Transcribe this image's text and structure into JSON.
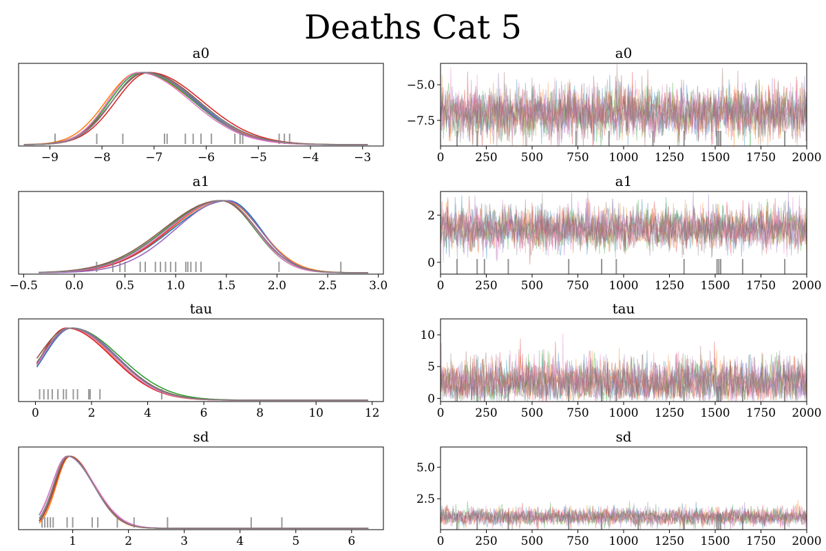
{
  "title": "Deaths Cat 5",
  "colors": [
    "#1f77b4",
    "#ff7f0e",
    "#2ca02c",
    "#d62728",
    "#9467bd",
    "#8c564b",
    "#e377c2",
    "#7f7f7f"
  ],
  "chart_data": [
    {
      "type": "line",
      "subtype": "density",
      "title": "a0",
      "xlim": [
        -9.6,
        -2.6
      ],
      "xticks": [
        -9,
        -8,
        -7,
        -6,
        -5,
        -4,
        -3
      ],
      "yticks_visible": false,
      "range": [
        -9.5,
        -2.9
      ],
      "series": [
        {
          "mode": -7.2,
          "sdl": 0.6,
          "sdr": 1.0
        },
        {
          "mode": -7.3,
          "sdl": 0.62,
          "sdr": 1.05
        },
        {
          "mode": -7.25,
          "sdl": 0.6,
          "sdr": 1.0
        },
        {
          "mode": -7.1,
          "sdl": 0.63,
          "sdr": 1.02
        },
        {
          "mode": -7.2,
          "sdl": 0.6,
          "sdr": 0.98
        },
        {
          "mode": -7.15,
          "sdl": 0.65,
          "sdr": 1.0
        },
        {
          "mode": -7.3,
          "sdl": 0.58,
          "sdr": 1.0
        },
        {
          "mode": -7.2,
          "sdl": 0.6,
          "sdr": 1.03
        }
      ],
      "rug": [
        -8.9,
        -8.1,
        -7.6,
        -6.8,
        -6.75,
        -6.4,
        -6.25,
        -6.1,
        -5.9,
        -5.45,
        -5.35,
        -5.3,
        -4.6,
        -4.5,
        -4.4
      ]
    },
    {
      "type": "line",
      "subtype": "trace",
      "title": "a0",
      "xlim": [
        0,
        2000
      ],
      "xticks": [
        0,
        250,
        500,
        750,
        1000,
        1250,
        1500,
        1750,
        2000
      ],
      "ylim": [
        -9.3,
        -3.5
      ],
      "yticks": [
        -7.5,
        -5.0
      ],
      "ytick_labels": [
        "−7.5",
        "−5.0"
      ],
      "center": -7.0,
      "spread": 0.9,
      "rug": [
        90,
        200,
        740,
        920,
        1160,
        1330,
        1510,
        1520,
        1530,
        1880
      ]
    },
    {
      "type": "line",
      "subtype": "density",
      "title": "a1",
      "xlim": [
        -0.55,
        3.05
      ],
      "xticks": [
        -0.5,
        0.0,
        0.5,
        1.0,
        1.5,
        2.0,
        2.5,
        3.0
      ],
      "yticks_visible": false,
      "range": [
        -0.35,
        2.9
      ],
      "series": [
        {
          "mode": 1.52,
          "sdl": 0.55,
          "sdr": 0.32
        },
        {
          "mode": 1.48,
          "sdl": 0.53,
          "sdr": 0.35
        },
        {
          "mode": 1.45,
          "sdl": 0.55,
          "sdr": 0.33
        },
        {
          "mode": 1.46,
          "sdl": 0.52,
          "sdr": 0.34
        },
        {
          "mode": 1.5,
          "sdl": 0.5,
          "sdr": 0.33
        },
        {
          "mode": 1.44,
          "sdl": 0.56,
          "sdr": 0.35
        },
        {
          "mode": 1.47,
          "sdl": 0.54,
          "sdr": 0.32
        },
        {
          "mode": 1.46,
          "sdl": 0.55,
          "sdr": 0.34
        }
      ],
      "rug": [
        0.22,
        0.38,
        0.45,
        0.5,
        0.65,
        0.7,
        0.8,
        0.85,
        0.9,
        0.95,
        1.0,
        1.1,
        1.12,
        1.15,
        1.2,
        1.25,
        2.02,
        2.63
      ]
    },
    {
      "type": "line",
      "subtype": "trace",
      "title": "a1",
      "xlim": [
        0,
        2000
      ],
      "xticks": [
        0,
        250,
        500,
        750,
        1000,
        1250,
        1500,
        1750,
        2000
      ],
      "ylim": [
        -0.5,
        3.0
      ],
      "yticks": [
        0,
        2
      ],
      "ytick_labels": [
        "0",
        "2"
      ],
      "center": 1.4,
      "spread": 0.45,
      "rug": [
        90,
        200,
        240,
        370,
        700,
        880,
        960,
        1330,
        1510,
        1520,
        1530,
        1650,
        1880
      ]
    },
    {
      "type": "line",
      "subtype": "density",
      "title": "tau",
      "xlim": [
        -0.6,
        12.4
      ],
      "xticks": [
        0,
        2,
        4,
        6,
        8,
        10,
        12
      ],
      "yticks_visible": false,
      "range": [
        0.05,
        11.85
      ],
      "series": [
        {
          "mode": 1.3,
          "sdl": 1.0,
          "sdr": 1.6
        },
        {
          "mode": 1.2,
          "sdl": 0.95,
          "sdr": 1.55
        },
        {
          "mode": 1.3,
          "sdl": 1.1,
          "sdr": 1.7
        },
        {
          "mode": 1.1,
          "sdl": 0.9,
          "sdr": 1.6
        },
        {
          "mode": 1.3,
          "sdl": 1.05,
          "sdr": 1.6
        },
        {
          "mode": 1.2,
          "sdl": 1.1,
          "sdr": 1.65
        },
        {
          "mode": 1.2,
          "sdl": 0.95,
          "sdr": 1.58
        },
        {
          "mode": 1.25,
          "sdl": 1.05,
          "sdr": 1.6
        }
      ],
      "rug": [
        0.15,
        0.3,
        0.45,
        0.6,
        0.8,
        1.0,
        1.1,
        1.35,
        1.5,
        1.9,
        1.95,
        2.3,
        4.5
      ]
    },
    {
      "type": "line",
      "subtype": "trace",
      "title": "tau",
      "xlim": [
        0,
        2000
      ],
      "xticks": [
        0,
        250,
        500,
        750,
        1000,
        1250,
        1500,
        1750,
        2000
      ],
      "ylim": [
        -0.5,
        12.5
      ],
      "yticks": [
        0,
        5,
        10
      ],
      "ytick_labels": [
        "0",
        "5",
        "10"
      ],
      "center": 2.5,
      "spread": 1.8,
      "rug": [
        90,
        200,
        240,
        370,
        700,
        880,
        960,
        1330,
        1510,
        1520,
        1530,
        1650,
        1880
      ]
    },
    {
      "type": "line",
      "subtype": "density",
      "title": "sd",
      "xlim": [
        0.03,
        6.57
      ],
      "xticks": [
        1,
        2,
        3,
        4,
        5,
        6
      ],
      "yticks_visible": false,
      "range": [
        0.4,
        6.3
      ],
      "series": [
        {
          "mode": 0.93,
          "sdl": 0.25,
          "sdr": 0.45
        },
        {
          "mode": 0.95,
          "sdl": 0.24,
          "sdr": 0.43
        },
        {
          "mode": 0.92,
          "sdl": 0.26,
          "sdr": 0.46
        },
        {
          "mode": 0.94,
          "sdl": 0.25,
          "sdr": 0.44
        },
        {
          "mode": 0.9,
          "sdl": 0.27,
          "sdr": 0.47
        },
        {
          "mode": 0.93,
          "sdl": 0.25,
          "sdr": 0.45
        },
        {
          "mode": 0.91,
          "sdl": 0.28,
          "sdr": 0.48
        },
        {
          "mode": 0.92,
          "sdl": 0.26,
          "sdr": 0.45
        }
      ],
      "rug": [
        0.45,
        0.5,
        0.55,
        0.6,
        0.65,
        0.9,
        1.0,
        1.35,
        1.45,
        1.8,
        2.1,
        2.7,
        4.2,
        4.75
      ]
    },
    {
      "type": "line",
      "subtype": "trace",
      "title": "sd",
      "xlim": [
        0,
        2000
      ],
      "xticks": [
        0,
        250,
        500,
        750,
        1000,
        1250,
        1500,
        1750,
        2000
      ],
      "ylim": [
        0.05,
        6.6
      ],
      "yticks": [
        2.5,
        5.0
      ],
      "ytick_labels": [
        "2.5",
        "5.0"
      ],
      "center": 1.05,
      "spread": 0.35,
      "rug": [
        90,
        200,
        370,
        700,
        880,
        1080,
        1330,
        1510,
        1520,
        1530,
        1650,
        1880
      ]
    }
  ]
}
